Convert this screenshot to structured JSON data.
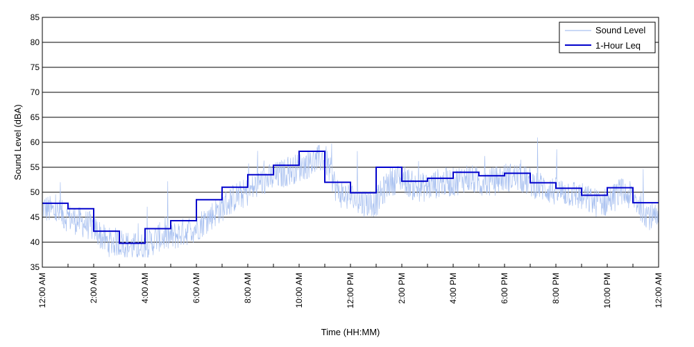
{
  "chart_data": {
    "type": "line",
    "xlabel": "Time (HH:MM)",
    "ylabel": "Sound Level (dBA)",
    "xlim": [
      0,
      24
    ],
    "ylim": [
      35,
      85
    ],
    "grid": "horizontal",
    "legend_position": "top-right",
    "x_ticks": [
      {
        "value": 0,
        "label": "12:00 AM"
      },
      {
        "value": 2,
        "label": "2:00 AM"
      },
      {
        "value": 4,
        "label": "4:00 AM"
      },
      {
        "value": 6,
        "label": "6:00 AM"
      },
      {
        "value": 8,
        "label": "8:00 AM"
      },
      {
        "value": 10,
        "label": "10:00 AM"
      },
      {
        "value": 12,
        "label": "12:00 PM"
      },
      {
        "value": 14,
        "label": "2:00 PM"
      },
      {
        "value": 16,
        "label": "4:00 PM"
      },
      {
        "value": 18,
        "label": "6:00 PM"
      },
      {
        "value": 20,
        "label": "8:00 PM"
      },
      {
        "value": 22,
        "label": "10:00 PM"
      },
      {
        "value": 24,
        "label": "12:00 AM"
      }
    ],
    "y_ticks": [
      35,
      40,
      45,
      50,
      55,
      60,
      65,
      70,
      75,
      80,
      85
    ],
    "series": [
      {
        "name": "Sound Level",
        "color": "#a9c1f0",
        "style": "thin-line",
        "x": [
          0,
          0.5,
          1,
          1.5,
          2,
          2.5,
          3,
          3.5,
          4,
          4.5,
          5,
          5.5,
          6,
          6.5,
          7,
          7.5,
          8,
          8.5,
          9,
          9.5,
          10,
          10.5,
          11,
          11.5,
          12,
          12.5,
          13,
          13.5,
          14,
          14.5,
          15,
          15.5,
          16,
          16.5,
          17,
          17.5,
          18,
          18.5,
          19,
          19.5,
          20,
          20.5,
          21,
          21.5,
          22,
          22.5,
          23,
          23.5,
          24
        ],
        "values": [
          47,
          46,
          45,
          44,
          43,
          40,
          40,
          39,
          39,
          41,
          41,
          42,
          43,
          45,
          47,
          49,
          50,
          52,
          53,
          54,
          55,
          56,
          57,
          50,
          49,
          48,
          48,
          52,
          53,
          51,
          51,
          52,
          52,
          53,
          52,
          52,
          53,
          53,
          52,
          51,
          50,
          50,
          49,
          48,
          48,
          50,
          49,
          46,
          44
        ]
      },
      {
        "name": "1-Hour Leq",
        "color": "#0000cc",
        "style": "step",
        "hourly_values": [
          47.8,
          46.7,
          42.2,
          39.8,
          42.7,
          44.3,
          48.5,
          51.0,
          53.5,
          55.4,
          58.2,
          52.0,
          49.9,
          55.0,
          52.2,
          52.8,
          54.0,
          53.3,
          53.8,
          51.9,
          50.8,
          49.4,
          50.9,
          47.9
        ]
      }
    ]
  }
}
